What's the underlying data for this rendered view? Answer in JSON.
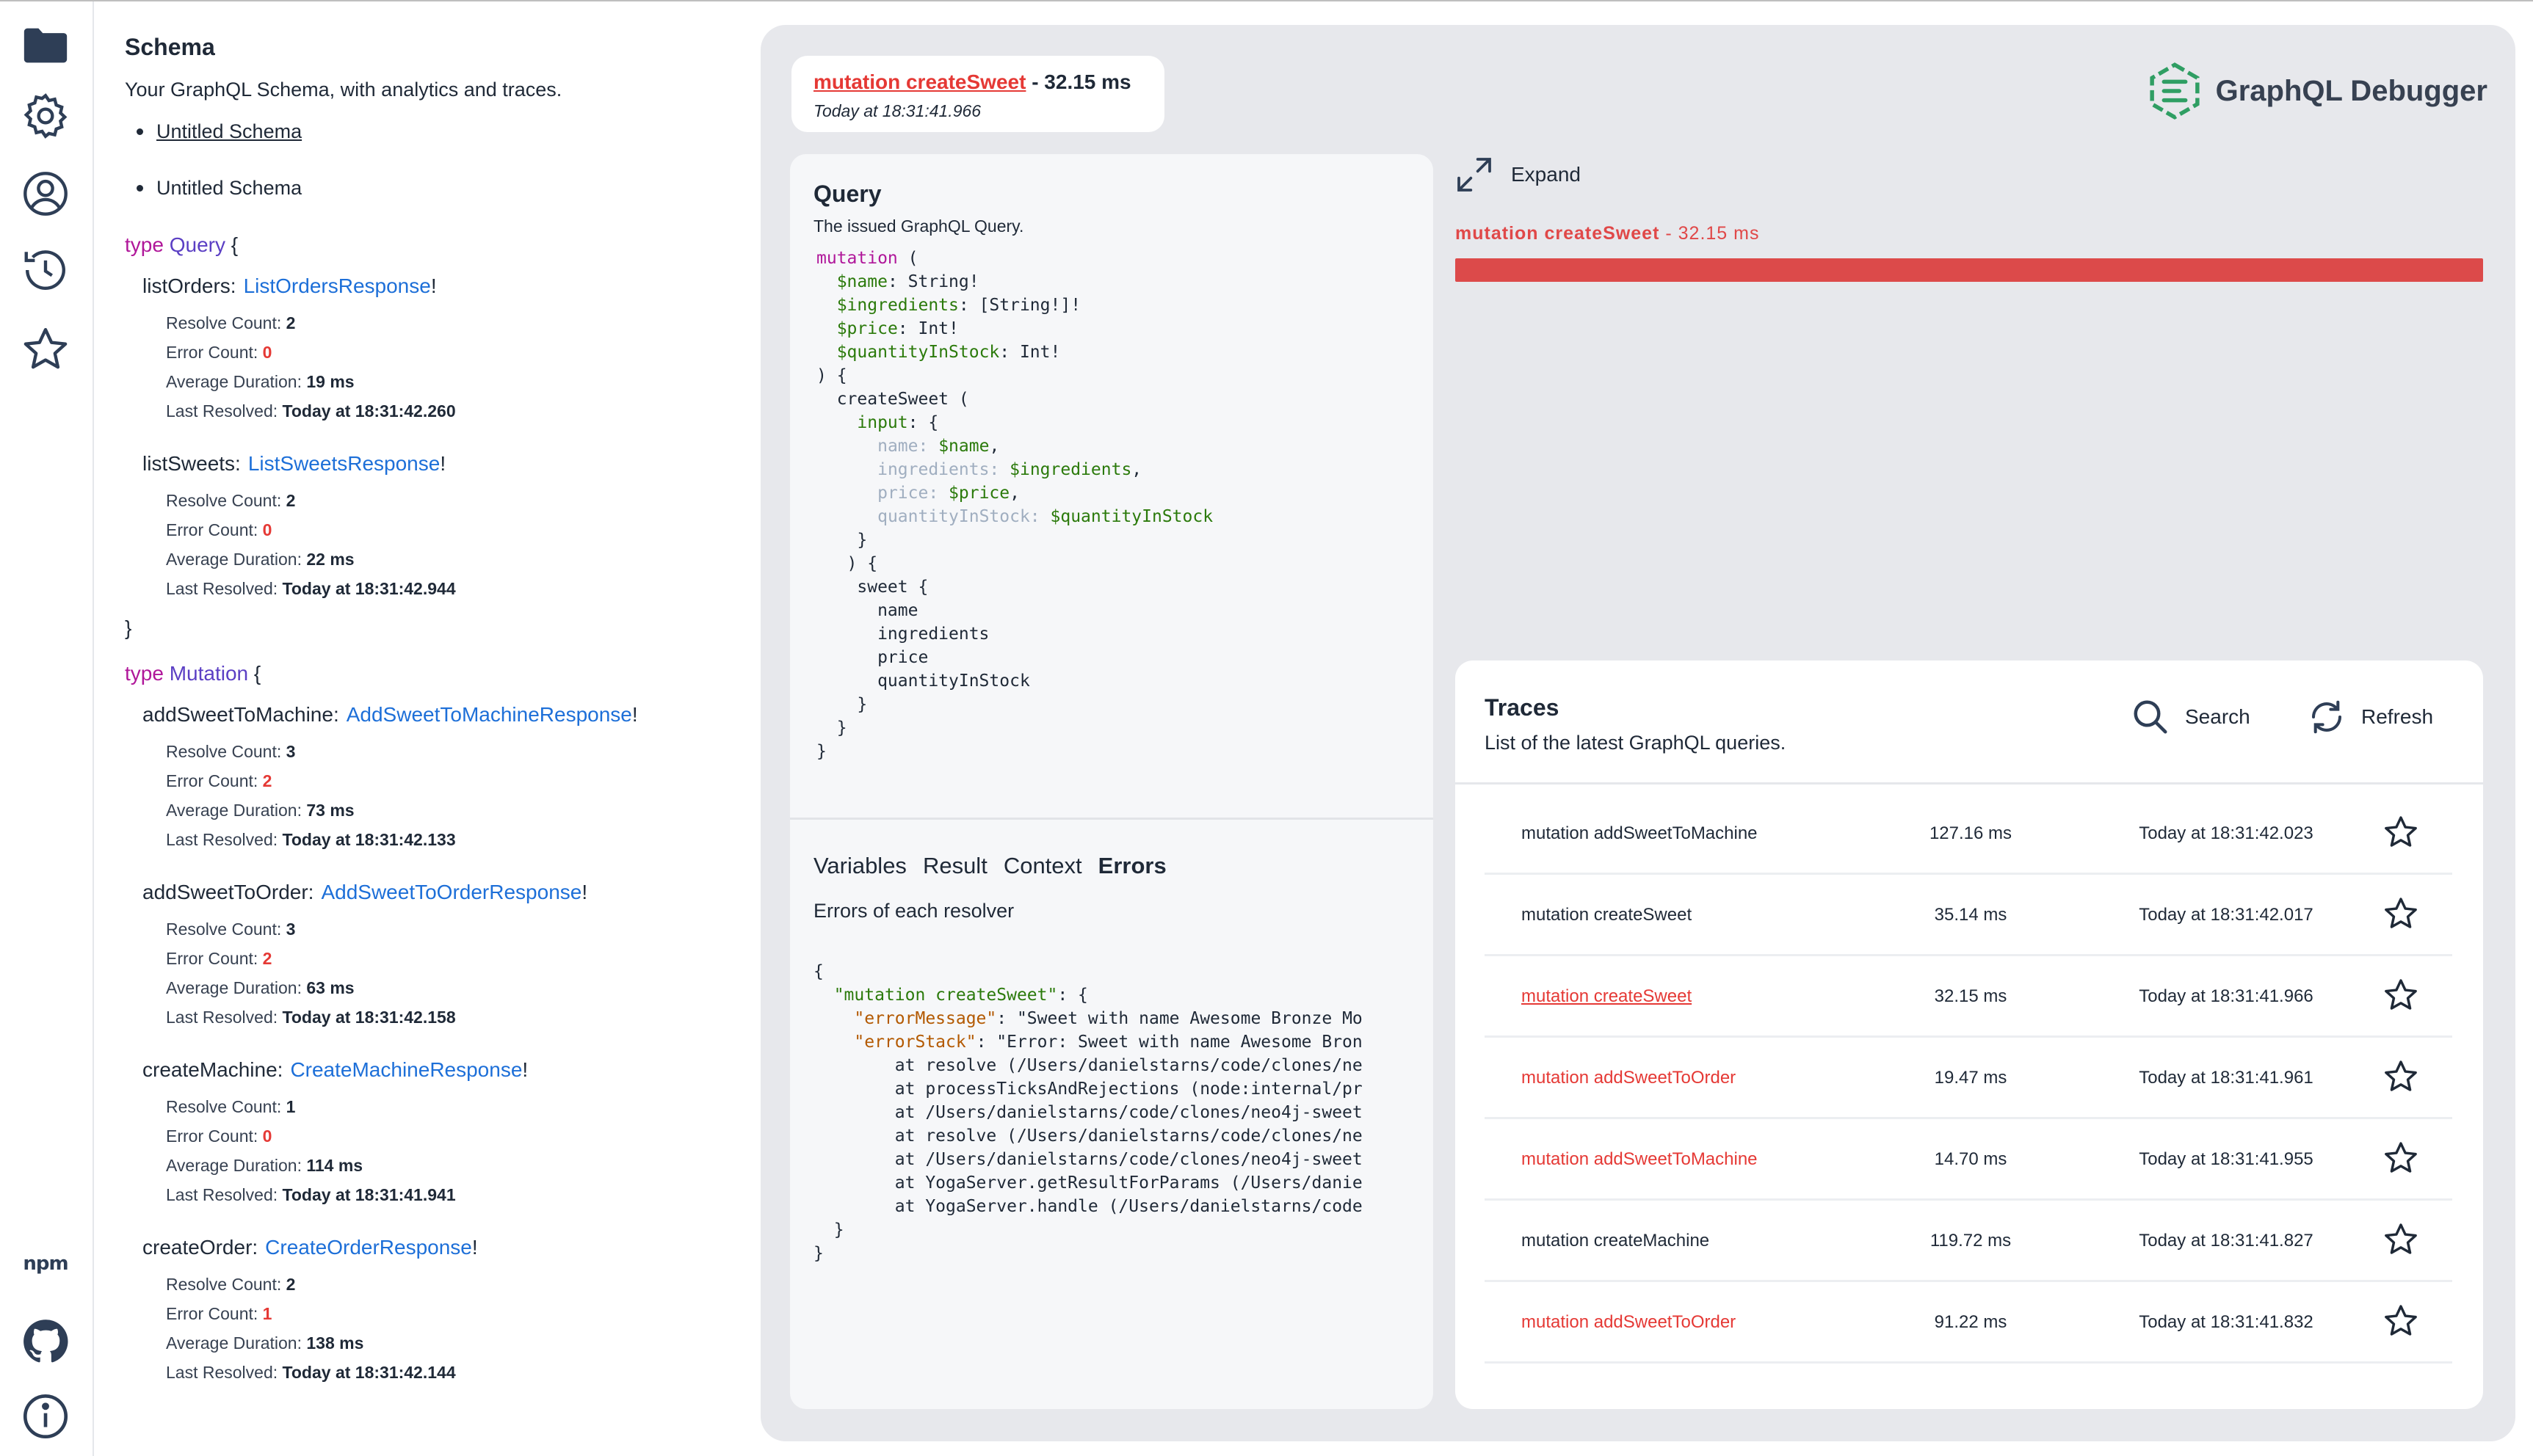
{
  "schema": {
    "title": "Schema",
    "subtitle": "Your GraphQL Schema, with analytics and traces.",
    "links": [
      "Untitled Schema",
      "Untitled Schema"
    ],
    "types": [
      {
        "keyword": "type",
        "name": "Query",
        "fields": [
          {
            "name": "listOrders:",
            "type": "ListOrdersResponse",
            "resolve_count": "2",
            "error_count": "0",
            "avg_duration": "19 ms",
            "last_resolved": "Today at 18:31:42.260"
          },
          {
            "name": "listSweets:",
            "type": "ListSweetsResponse",
            "resolve_count": "2",
            "error_count": "0",
            "avg_duration": "22 ms",
            "last_resolved": "Today at 18:31:42.944"
          }
        ]
      },
      {
        "keyword": "type",
        "name": "Mutation",
        "fields": [
          {
            "name": "addSweetToMachine:",
            "type": "AddSweetToMachineResponse",
            "resolve_count": "3",
            "error_count": "2",
            "avg_duration": "73 ms",
            "last_resolved": "Today at 18:31:42.133"
          },
          {
            "name": "addSweetToOrder:",
            "type": "AddSweetToOrderResponse",
            "resolve_count": "3",
            "error_count": "2",
            "avg_duration": "63 ms",
            "last_resolved": "Today at 18:31:42.158"
          },
          {
            "name": "createMachine:",
            "type": "CreateMachineResponse",
            "resolve_count": "1",
            "error_count": "0",
            "avg_duration": "114 ms",
            "last_resolved": "Today at 18:31:41.941"
          },
          {
            "name": "createOrder:",
            "type": "CreateOrderResponse",
            "resolve_count": "2",
            "error_count": "1",
            "avg_duration": "138 ms",
            "last_resolved": "Today at 18:31:42.144"
          }
        ]
      }
    ],
    "stat_labels": {
      "resolve": "Resolve Count:",
      "error": "Error Count:",
      "avg": "Average Duration:",
      "last": "Last Resolved:"
    },
    "open_brace": "{",
    "close_brace": "}",
    "bang": "!"
  },
  "header": {
    "op_name": "mutation createSweet",
    "op_duration": " - 32.15 ms",
    "op_time": "Today at 18:31:41.966",
    "logo_text": "GraphQL Debugger"
  },
  "query_panel": {
    "title": "Query",
    "subtitle": "The issued GraphQL Query."
  },
  "detail_tabs": {
    "variables": "Variables",
    "result": "Result",
    "context": "Context",
    "errors": "Errors",
    "active": "Errors",
    "errors_subtitle": "Errors of each resolver"
  },
  "expand_label": "Expand",
  "timeline": {
    "label": "mutation createSweet",
    "duration": " - 32.15 ms",
    "fraction": 1.0,
    "color": "#dc4a4a"
  },
  "traces": {
    "title": "Traces",
    "subtitle": "List of the latest GraphQL queries.",
    "search_label": "Search",
    "refresh_label": "Refresh",
    "rows": [
      {
        "name": "mutation addSweetToMachine",
        "duration": "127.16 ms",
        "time": "Today at 18:31:42.023",
        "status": "ok"
      },
      {
        "name": "mutation createSweet",
        "duration": "35.14 ms",
        "time": "Today at 18:31:42.017",
        "status": "ok"
      },
      {
        "name": "mutation createSweet",
        "duration": "32.15 ms",
        "time": "Today at 18:31:41.966",
        "status": "selected"
      },
      {
        "name": "mutation addSweetToOrder",
        "duration": "19.47 ms",
        "time": "Today at 18:31:41.961",
        "status": "error"
      },
      {
        "name": "mutation addSweetToMachine",
        "duration": "14.70 ms",
        "time": "Today at 18:31:41.955",
        "status": "error"
      },
      {
        "name": "mutation createMachine",
        "duration": "119.72 ms",
        "time": "Today at 18:31:41.827",
        "status": "ok"
      },
      {
        "name": "mutation addSweetToOrder",
        "duration": "91.22 ms",
        "time": "Today at 18:31:41.832",
        "status": "error"
      }
    ]
  },
  "sidebar": {
    "icons": [
      "folder-icon",
      "gear-icon",
      "user-icon",
      "history-icon",
      "star-icon",
      "npm-icon",
      "github-icon",
      "info-icon"
    ],
    "npm_text": "npm"
  },
  "colors": {
    "accent_red": "#e53935",
    "type_blue": "#1d6fd8",
    "keyword": "#b0179a"
  }
}
